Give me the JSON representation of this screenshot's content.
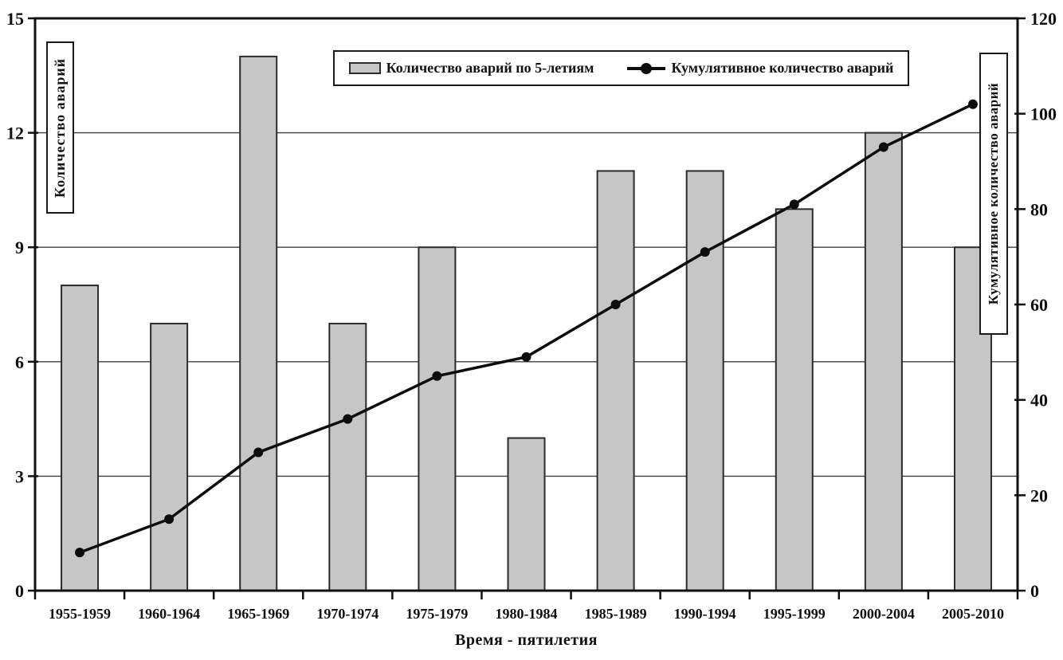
{
  "chart_data": {
    "type": "bar+line",
    "categories": [
      "1955-1959",
      "1960-1964",
      "1965-1969",
      "1970-1974",
      "1975-1979",
      "1980-1984",
      "1985-1989",
      "1990-1994",
      "1995-1999",
      "2000-2004",
      "2005-2010"
    ],
    "series": [
      {
        "name": "Количество аварий по 5-летиям",
        "type": "bar",
        "axis": "left",
        "values": [
          8,
          7,
          14,
          7,
          9,
          4,
          11,
          11,
          10,
          12,
          9
        ]
      },
      {
        "name": "Кумулятивное количество аварий",
        "type": "line",
        "axis": "right",
        "marker": "filled-circle",
        "values": [
          8,
          15,
          29,
          36,
          45,
          49,
          60,
          71,
          81,
          93,
          102
        ]
      }
    ],
    "left_axis": {
      "title": "Количество аварий",
      "min": 0,
      "max": 15,
      "ticks": [
        0,
        3,
        6,
        9,
        12,
        15
      ]
    },
    "right_axis": {
      "title": "Кумулятивное количество аварий",
      "min": 0,
      "max": 120,
      "ticks": [
        0,
        20,
        40,
        60,
        80,
        100,
        120
      ]
    },
    "x_axis": {
      "title": "Время - пятилетия"
    },
    "grid": "horizontal",
    "legend_position": "top",
    "colors": {
      "bar_fill": "#c6c6c6",
      "bar_border": "#2b2b2b",
      "line": "#0d0d0d",
      "grid": "#3f3f3f",
      "frame": "#111111",
      "background": "#ffffff",
      "text": "#111111"
    }
  }
}
